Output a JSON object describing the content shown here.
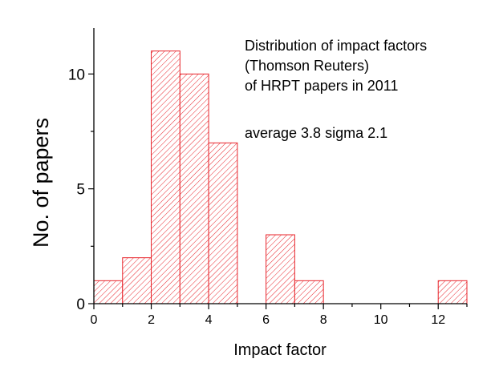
{
  "chart_data": {
    "type": "bar",
    "bin_edges": [
      0,
      1,
      2,
      3,
      4,
      5,
      6,
      7,
      8,
      9,
      10,
      11,
      12,
      13
    ],
    "values": [
      1,
      2,
      11,
      10,
      7,
      0,
      3,
      1,
      0,
      0,
      0,
      0,
      1
    ],
    "xlabel": "Impact factor",
    "ylabel": "No. of papers",
    "xlim": [
      0,
      13
    ],
    "ylim": [
      0,
      12
    ],
    "xticks": [
      0,
      2,
      4,
      6,
      8,
      10,
      12
    ],
    "yticks": [
      0,
      5,
      10
    ],
    "annotation_lines": [
      "Distribution of impact factors",
      "(Thomson Reuters)",
      "of HRPT papers in 2011"
    ],
    "stats_text": "average 3.8 sigma 2.1",
    "bar_color": "#e8232a",
    "grid": false,
    "legend": "none"
  }
}
